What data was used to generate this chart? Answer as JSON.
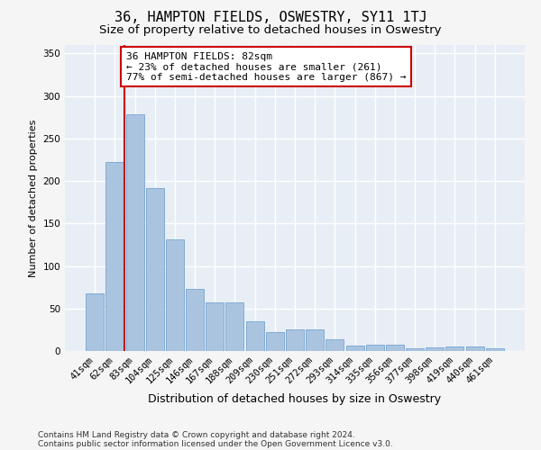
{
  "title": "36, HAMPTON FIELDS, OSWESTRY, SY11 1TJ",
  "subtitle": "Size of property relative to detached houses in Oswestry",
  "xlabel": "Distribution of detached houses by size in Oswestry",
  "ylabel": "Number of detached properties",
  "footer_line1": "Contains HM Land Registry data © Crown copyright and database right 2024.",
  "footer_line2": "Contains public sector information licensed under the Open Government Licence v3.0.",
  "bar_labels": [
    "41sqm",
    "62sqm",
    "83sqm",
    "104sqm",
    "125sqm",
    "146sqm",
    "167sqm",
    "188sqm",
    "209sqm",
    "230sqm",
    "251sqm",
    "272sqm",
    "293sqm",
    "314sqm",
    "335sqm",
    "356sqm",
    "377sqm",
    "398sqm",
    "419sqm",
    "440sqm",
    "461sqm"
  ],
  "bar_values": [
    68,
    222,
    278,
    192,
    131,
    73,
    57,
    57,
    35,
    22,
    25,
    25,
    14,
    6,
    7,
    7,
    3,
    4,
    5,
    5,
    3
  ],
  "bar_color": "#aac4e0",
  "bar_edge_color": "#6699cc",
  "highlight_line_color": "#cc0000",
  "annotation_text": "36 HAMPTON FIELDS: 82sqm\n← 23% of detached houses are smaller (261)\n77% of semi-detached houses are larger (867) →",
  "annotation_box_color": "#ffffff",
  "annotation_box_edge_color": "#cc0000",
  "ylim": [
    0,
    360
  ],
  "yticks": [
    0,
    50,
    100,
    150,
    200,
    250,
    300,
    350
  ],
  "background_color": "#e8eef5",
  "grid_color": "#ffffff",
  "title_fontsize": 11,
  "subtitle_fontsize": 9.5,
  "xlabel_fontsize": 9,
  "ylabel_fontsize": 8,
  "tick_fontsize": 7.5,
  "annotation_fontsize": 8,
  "footer_fontsize": 6.5
}
